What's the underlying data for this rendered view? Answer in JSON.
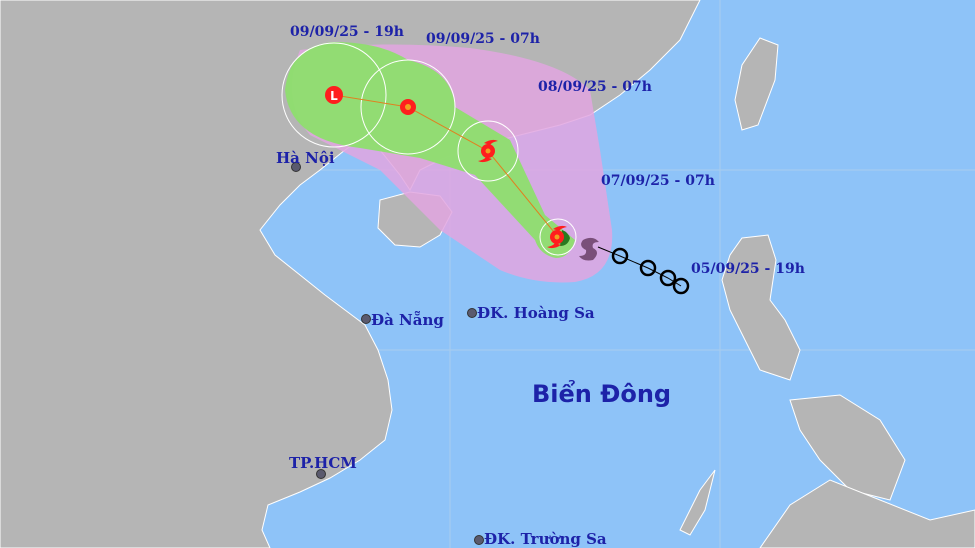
{
  "map": {
    "colors": {
      "ocean": "#8ec3f8",
      "land": "#b5b5b5",
      "border": "#ffffff",
      "cone_outer": "#e2a6e0",
      "cone_inner": "#8ede6e",
      "storm_marker": "#ff1e1e",
      "label": "#1d22a8"
    },
    "forecast_points": [
      {
        "time": "07/09/25 - 07h",
        "icon": "typhoon-icon"
      },
      {
        "time": "08/09/25 - 07h",
        "icon": "typhoon-icon"
      },
      {
        "time": "09/09/25 - 07h",
        "icon": "tropical-depression-icon"
      },
      {
        "time": "09/09/25 - 19h",
        "icon": "low-pressure-icon",
        "marker_text": "L"
      }
    ],
    "past_track_start": "05/09/25 - 19h",
    "places": [
      {
        "name": "Hà Nội"
      },
      {
        "name": "Đà Nẵng"
      },
      {
        "name": "ĐK. Hoàng Sa"
      },
      {
        "name": "TP.HCM"
      },
      {
        "name": "ĐK. Trường Sa"
      }
    ],
    "sea_name": "Biển Đông"
  }
}
